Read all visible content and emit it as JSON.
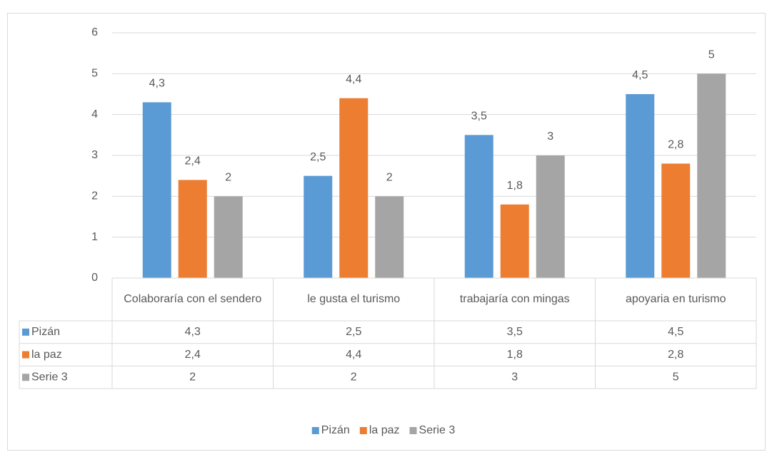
{
  "chart_data": {
    "type": "bar",
    "categories": [
      "Colaboraría con el sendero",
      "le gusta el turismo",
      "trabajaría con mingas",
      "apoyaria en turismo"
    ],
    "series": [
      {
        "name": "Pizán",
        "color": "#5b9bd5",
        "values": [
          4.3,
          2.5,
          3.5,
          4.5
        ],
        "value_labels": [
          "4,3",
          "2,5",
          "3,5",
          "4,5"
        ]
      },
      {
        "name": "la paz",
        "color": "#ed7d31",
        "values": [
          2.4,
          4.4,
          1.8,
          2.8
        ],
        "value_labels": [
          "2,4",
          "4,4",
          "1,8",
          "2,8"
        ]
      },
      {
        "name": "Serie 3",
        "color": "#a5a5a5",
        "values": [
          2,
          2,
          3,
          5
        ],
        "value_labels": [
          "2",
          "2",
          "3",
          "5"
        ]
      }
    ],
    "ylim": [
      0,
      6
    ],
    "yticks": [
      0,
      1,
      2,
      3,
      4,
      5,
      6
    ],
    "grid": true,
    "legend": "bottom",
    "data_table": true
  }
}
